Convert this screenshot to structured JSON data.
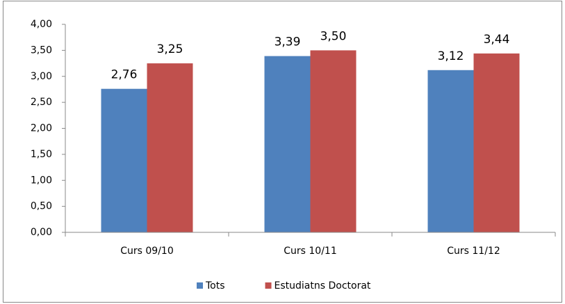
{
  "chart_data": {
    "type": "bar",
    "categories": [
      "Curs 09/10",
      "Curs 10/11",
      "Curs 11/12"
    ],
    "series": [
      {
        "name": "Tots",
        "color": "#4f81bd",
        "values": [
          2.76,
          3.39,
          3.12
        ],
        "value_labels": [
          "2,76",
          "3,39",
          "3,12"
        ]
      },
      {
        "name": "Estudiatns Doctorat",
        "color": "#c0504d",
        "values": [
          3.25,
          3.5,
          3.44
        ],
        "value_labels": [
          "3,25",
          "3,50",
          "3,44"
        ]
      }
    ],
    "ylim": [
      0,
      4
    ],
    "yticks": [
      {
        "value": 0,
        "label": "0,00"
      },
      {
        "value": 0.5,
        "label": "0,50"
      },
      {
        "value": 1,
        "label": "1,00"
      },
      {
        "value": 1.5,
        "label": "1,50"
      },
      {
        "value": 2,
        "label": "2,00"
      },
      {
        "value": 2.5,
        "label": "2,50"
      },
      {
        "value": 3,
        "label": "3,00"
      },
      {
        "value": 3.5,
        "label": "3,50"
      },
      {
        "value": 4,
        "label": "4,00"
      }
    ],
    "grid": false,
    "legend": "bottom"
  }
}
